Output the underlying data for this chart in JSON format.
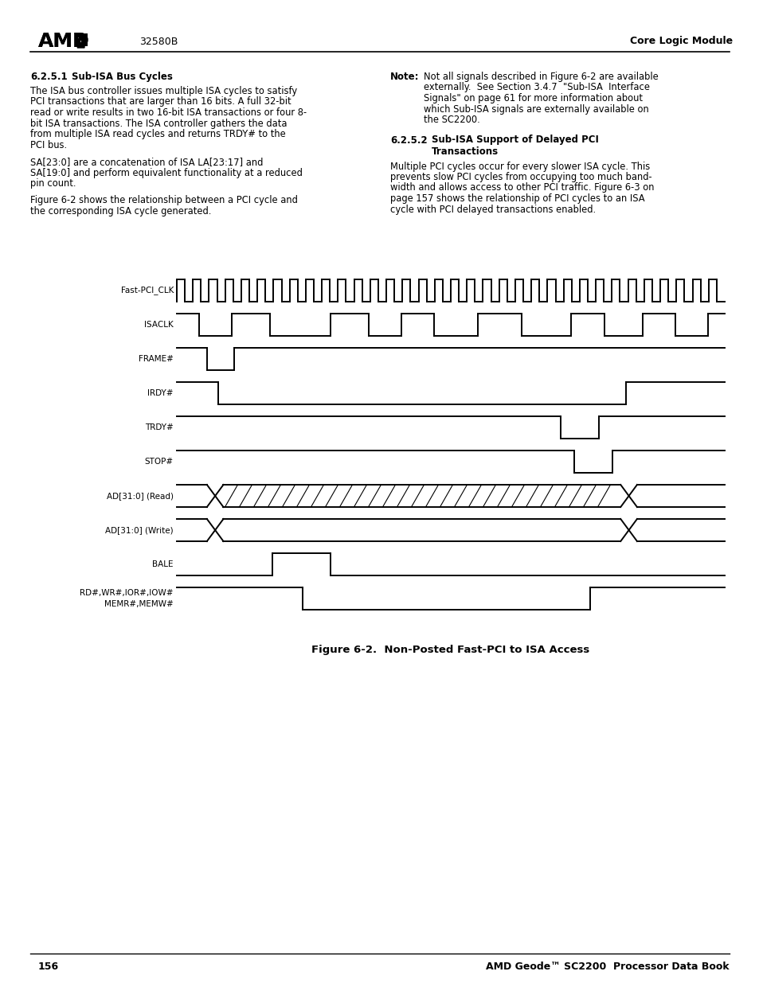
{
  "page_num": "156",
  "header_center": "32580B",
  "header_right": "Core Logic Module",
  "footer_right": "AMD Geode™ SC2200  Processor Data Book",
  "section1_title": "6.2.5.1   Sub-ISA Bus Cycles",
  "note_label": "Note:",
  "section2_heading1": "6.2.5.2   Sub-ISA Support of Delayed PCI",
  "section2_heading2": "Transactions",
  "figure_caption": "Figure 6-2.  Non-Posted Fast-PCI to ISA Access",
  "signals": [
    "Fast-PCI_CLK",
    "ISACLK",
    "FRAME#",
    "IRDY#",
    "TRDY#",
    "STOP#",
    "AD[31:0] (Read)",
    "AD[31:0] (Write)",
    "BALE",
    "RD#,WR#,IOR#,IOW#\nMEMR#,MEMW#"
  ],
  "bg_color": "#ffffff"
}
